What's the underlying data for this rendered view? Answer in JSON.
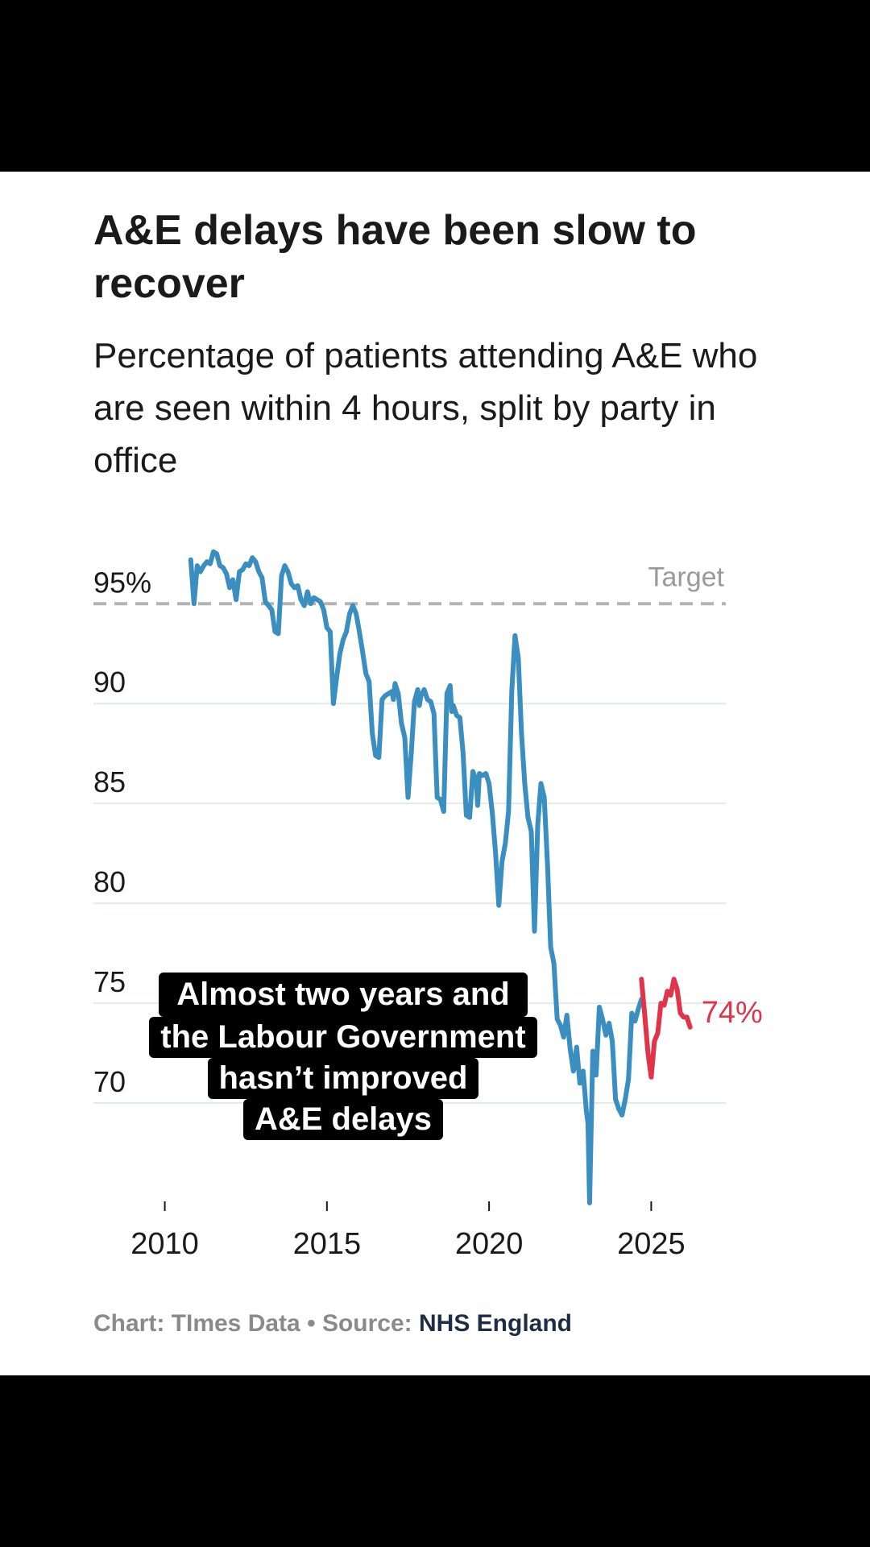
{
  "title": "A&E delays have been slow to recover",
  "subtitle": "Percentage of patients attending A&E who are seen within 4 hours, split by party in office",
  "caption": {
    "lines": [
      "Almost two years and",
      "the Labour Government",
      "hasn’t improved",
      "A&E delays"
    ]
  },
  "footer": {
    "chart_credit": "Chart: TImes Data",
    "separator": "•",
    "source_label": "Source:",
    "source_name": "NHS England"
  },
  "colors": {
    "conservative_series": "#3a8fc0",
    "labour_series": "#e0344b",
    "target_line": "#b3b3b3",
    "gridline": "#e4e9ee"
  },
  "chart_data": {
    "type": "line",
    "title": "A&E delays have been slow to recover",
    "subtitle": "Percentage of patients attending A&E who are seen within 4 hours, split by party in office",
    "xlabel": "",
    "ylabel": "",
    "xlim": [
      2007.8,
      2027.3
    ],
    "ylim": [
      65,
      98.6
    ],
    "x_ticks": [
      {
        "value": 2010,
        "label": "2010"
      },
      {
        "value": 2015,
        "label": "2015"
      },
      {
        "value": 2020,
        "label": "2020"
      },
      {
        "value": 2025,
        "label": "2025"
      }
    ],
    "y_ticks": [
      {
        "value": 95,
        "label": "95%"
      },
      {
        "value": 90,
        "label": "90"
      },
      {
        "value": 85,
        "label": "85"
      },
      {
        "value": 80,
        "label": "80"
      },
      {
        "value": 75,
        "label": "75"
      },
      {
        "value": 70,
        "label": "70"
      }
    ],
    "grid": true,
    "reference_line": {
      "value": 95,
      "label": "Target",
      "style": "dashed"
    },
    "end_label": "74%",
    "series": [
      {
        "party": "conservative",
        "color": "#3a8fc0",
        "points": [
          [
            2010.8,
            97.2
          ],
          [
            2010.9,
            95.0
          ],
          [
            2011.0,
            96.9
          ],
          [
            2011.1,
            96.6
          ],
          [
            2011.2,
            96.9
          ],
          [
            2011.3,
            97.1
          ],
          [
            2011.4,
            97.0
          ],
          [
            2011.5,
            97.6
          ],
          [
            2011.6,
            97.5
          ],
          [
            2011.7,
            96.9
          ],
          [
            2011.8,
            96.8
          ],
          [
            2011.9,
            96.5
          ],
          [
            2012.0,
            95.8
          ],
          [
            2012.1,
            96.2
          ],
          [
            2012.2,
            95.2
          ],
          [
            2012.3,
            96.6
          ],
          [
            2012.4,
            96.7
          ],
          [
            2012.5,
            97.0
          ],
          [
            2012.6,
            96.9
          ],
          [
            2012.7,
            97.3
          ],
          [
            2012.8,
            97.1
          ],
          [
            2012.9,
            96.6
          ],
          [
            2013.0,
            96.3
          ],
          [
            2013.1,
            95.1
          ],
          [
            2013.2,
            94.9
          ],
          [
            2013.3,
            94.7
          ],
          [
            2013.4,
            93.6
          ],
          [
            2013.5,
            93.5
          ],
          [
            2013.6,
            96.4
          ],
          [
            2013.7,
            96.9
          ],
          [
            2013.8,
            96.6
          ],
          [
            2013.9,
            96.0
          ],
          [
            2014.0,
            95.8
          ],
          [
            2014.1,
            95.9
          ],
          [
            2014.2,
            95.2
          ],
          [
            2014.3,
            94.9
          ],
          [
            2014.4,
            95.6
          ],
          [
            2014.5,
            95.0
          ],
          [
            2014.6,
            95.3
          ],
          [
            2014.7,
            95.2
          ],
          [
            2014.8,
            95.1
          ],
          [
            2014.9,
            94.7
          ],
          [
            2015.0,
            93.8
          ],
          [
            2015.1,
            93.6
          ],
          [
            2015.2,
            90.0
          ],
          [
            2015.3,
            91.3
          ],
          [
            2015.4,
            92.5
          ],
          [
            2015.5,
            93.2
          ],
          [
            2015.6,
            93.6
          ],
          [
            2015.7,
            94.5
          ],
          [
            2015.8,
            94.9
          ],
          [
            2015.9,
            94.5
          ],
          [
            2016.0,
            93.6
          ],
          [
            2016.1,
            92.6
          ],
          [
            2016.2,
            91.5
          ],
          [
            2016.3,
            91.1
          ],
          [
            2016.4,
            88.5
          ],
          [
            2016.5,
            87.4
          ],
          [
            2016.6,
            87.3
          ],
          [
            2016.7,
            90.2
          ],
          [
            2016.8,
            90.4
          ],
          [
            2016.9,
            90.5
          ],
          [
            2017.0,
            90.6
          ],
          [
            2017.05,
            90.2
          ],
          [
            2017.1,
            91.0
          ],
          [
            2017.2,
            90.5
          ],
          [
            2017.3,
            89.0
          ],
          [
            2017.4,
            88.3
          ],
          [
            2017.5,
            85.3
          ],
          [
            2017.6,
            87.5
          ],
          [
            2017.7,
            90.1
          ],
          [
            2017.8,
            90.7
          ],
          [
            2017.85,
            89.9
          ],
          [
            2017.9,
            90.4
          ],
          [
            2018.0,
            90.7
          ],
          [
            2018.1,
            90.2
          ],
          [
            2018.2,
            90.1
          ],
          [
            2018.3,
            89.5
          ],
          [
            2018.4,
            85.3
          ],
          [
            2018.5,
            85.2
          ],
          [
            2018.6,
            84.6
          ],
          [
            2018.7,
            90.5
          ],
          [
            2018.8,
            90.9
          ],
          [
            2018.85,
            89.6
          ],
          [
            2018.9,
            89.9
          ],
          [
            2019.0,
            89.4
          ],
          [
            2019.1,
            89.3
          ],
          [
            2019.2,
            87.5
          ],
          [
            2019.3,
            84.4
          ],
          [
            2019.4,
            84.3
          ],
          [
            2019.5,
            86.6
          ],
          [
            2019.6,
            86.2
          ],
          [
            2019.65,
            84.9
          ],
          [
            2019.7,
            86.5
          ],
          [
            2019.8,
            86.4
          ],
          [
            2019.9,
            86.5
          ],
          [
            2020.0,
            86.0
          ],
          [
            2020.1,
            84.5
          ],
          [
            2020.2,
            82.5
          ],
          [
            2020.3,
            79.9
          ],
          [
            2020.4,
            82.1
          ],
          [
            2020.5,
            83.0
          ],
          [
            2020.6,
            84.6
          ],
          [
            2020.7,
            90.6
          ],
          [
            2020.8,
            93.4
          ],
          [
            2020.9,
            92.3
          ],
          [
            2021.0,
            88.5
          ],
          [
            2021.1,
            86.0
          ],
          [
            2021.2,
            84.3
          ],
          [
            2021.3,
            83.6
          ],
          [
            2021.4,
            78.6
          ],
          [
            2021.5,
            83.9
          ],
          [
            2021.6,
            86.0
          ],
          [
            2021.7,
            85.3
          ],
          [
            2021.8,
            82.0
          ],
          [
            2021.9,
            77.8
          ],
          [
            2022.0,
            77.0
          ],
          [
            2022.1,
            74.2
          ],
          [
            2022.2,
            73.9
          ],
          [
            2022.3,
            73.3
          ],
          [
            2022.4,
            74.4
          ],
          [
            2022.5,
            72.7
          ],
          [
            2022.6,
            71.6
          ],
          [
            2022.7,
            72.8
          ],
          [
            2022.8,
            71.0
          ],
          [
            2022.9,
            71.6
          ],
          [
            2023.0,
            69.6
          ],
          [
            2023.05,
            69.0
          ],
          [
            2023.1,
            65.0
          ],
          [
            2023.2,
            72.6
          ],
          [
            2023.3,
            71.4
          ],
          [
            2023.4,
            74.8
          ],
          [
            2023.5,
            74.2
          ],
          [
            2023.6,
            73.4
          ],
          [
            2023.7,
            74.0
          ],
          [
            2023.8,
            73.1
          ],
          [
            2023.9,
            70.2
          ],
          [
            2024.0,
            69.7
          ],
          [
            2024.1,
            69.4
          ],
          [
            2024.2,
            70.2
          ],
          [
            2024.3,
            71.2
          ],
          [
            2024.4,
            74.5
          ],
          [
            2024.5,
            74.1
          ],
          [
            2024.6,
            74.7
          ],
          [
            2024.7,
            75.2
          ]
        ]
      },
      {
        "party": "labour",
        "color": "#e0344b",
        "points": [
          [
            2024.7,
            76.2
          ],
          [
            2024.8,
            74.4
          ],
          [
            2024.9,
            72.5
          ],
          [
            2025.0,
            71.3
          ],
          [
            2025.1,
            73.1
          ],
          [
            2025.2,
            73.5
          ],
          [
            2025.3,
            75.0
          ],
          [
            2025.4,
            74.9
          ],
          [
            2025.5,
            75.6
          ],
          [
            2025.6,
            75.4
          ],
          [
            2025.7,
            76.2
          ],
          [
            2025.8,
            75.7
          ],
          [
            2025.9,
            74.5
          ],
          [
            2026.0,
            74.3
          ],
          [
            2026.1,
            74.3
          ],
          [
            2026.2,
            73.8
          ]
        ]
      }
    ]
  }
}
